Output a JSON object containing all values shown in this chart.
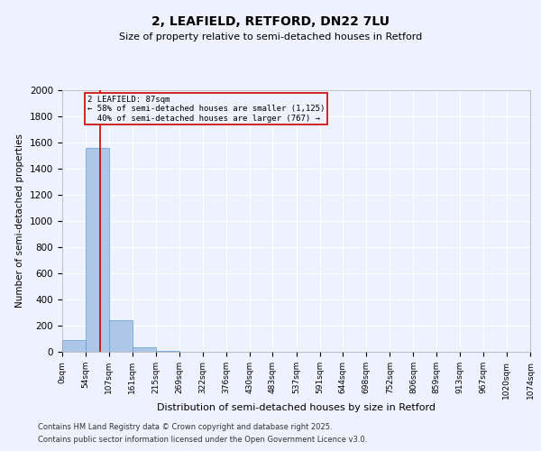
{
  "title1": "2, LEAFIELD, RETFORD, DN22 7LU",
  "title2": "Size of property relative to semi-detached houses in Retford",
  "xlabel": "Distribution of semi-detached houses by size in Retford",
  "ylabel": "Number of semi-detached properties",
  "bin_edges": [
    0,
    54,
    107,
    161,
    215,
    269,
    322,
    376,
    430,
    483,
    537,
    591,
    644,
    698,
    752,
    806,
    859,
    913,
    967,
    1020,
    1074
  ],
  "bin_labels": [
    "0sqm",
    "54sqm",
    "107sqm",
    "161sqm",
    "215sqm",
    "269sqm",
    "322sqm",
    "376sqm",
    "430sqm",
    "483sqm",
    "537sqm",
    "591sqm",
    "644sqm",
    "698sqm",
    "752sqm",
    "806sqm",
    "859sqm",
    "913sqm",
    "967sqm",
    "1020sqm",
    "1074sqm"
  ],
  "counts": [
    87,
    1560,
    240,
    35,
    5,
    2,
    1,
    0,
    0,
    0,
    0,
    0,
    0,
    0,
    0,
    0,
    0,
    0,
    0,
    0
  ],
  "bar_color": "#aec6e8",
  "bar_edge_color": "#5a9fd4",
  "red_line_x": 87,
  "annotation_title": "2 LEAFIELD: 87sqm",
  "annotation_line1": "← 58% of semi-detached houses are smaller (1,125)",
  "annotation_line2": "  40% of semi-detached houses are larger (767) →",
  "annotation_box_color": "#cc0000",
  "ylim": [
    0,
    2000
  ],
  "yticks": [
    0,
    200,
    400,
    600,
    800,
    1000,
    1200,
    1400,
    1600,
    1800,
    2000
  ],
  "background_color": "#eef2ff",
  "grid_color": "#ffffff",
  "footer1": "Contains HM Land Registry data © Crown copyright and database right 2025.",
  "footer2": "Contains public sector information licensed under the Open Government Licence v3.0."
}
